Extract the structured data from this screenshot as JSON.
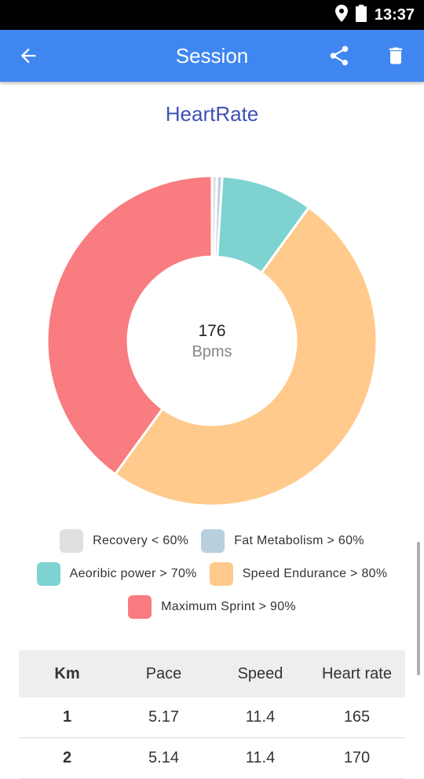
{
  "status": {
    "time": "13:37"
  },
  "appbar": {
    "title": "Session"
  },
  "chart_data": {
    "type": "pie",
    "title": "HeartRate",
    "center_value": "176",
    "center_unit": "Bpms",
    "categories": [
      "Recovery < 60%",
      "Fat Metabolism > 60%",
      "Aeoribic power > 70%",
      "Speed Endurance > 80%",
      "Maximum Sprint > 90%"
    ],
    "values": [
      0.5,
      0.5,
      9,
      50,
      40
    ],
    "colors": [
      "#e0e0e0",
      "#b8cfdd",
      "#7ed3d1",
      "#ffca8c",
      "#f97c80"
    ]
  },
  "legend": [
    {
      "label": "Recovery < 60%",
      "color": "#e0e0e0"
    },
    {
      "label": "Fat Metabolism > 60%",
      "color": "#b8cfdd"
    },
    {
      "label": "Aeoribic power > 70%",
      "color": "#7ed3d1"
    },
    {
      "label": "Speed Endurance > 80%",
      "color": "#ffca8c"
    },
    {
      "label": "Maximum Sprint > 90%",
      "color": "#f97c80"
    }
  ],
  "table": {
    "headers": [
      "Km",
      "Pace",
      "Speed",
      "Heart rate"
    ],
    "rows": [
      [
        "1",
        "5.17",
        "11.4",
        "165"
      ],
      [
        "2",
        "5.14",
        "11.4",
        "170"
      ]
    ]
  }
}
